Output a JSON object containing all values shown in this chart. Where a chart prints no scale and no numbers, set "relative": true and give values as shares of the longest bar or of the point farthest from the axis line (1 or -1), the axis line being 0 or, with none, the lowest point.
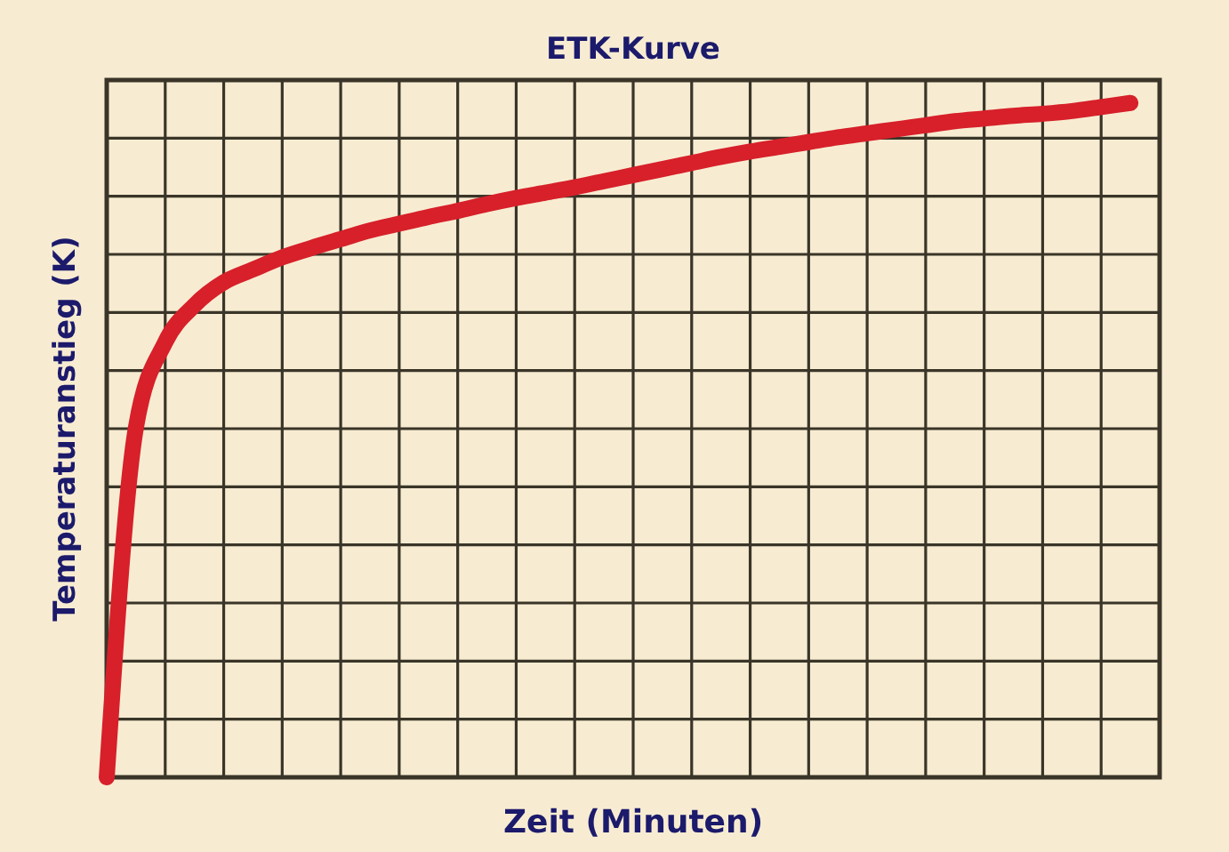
{
  "chart_data": {
    "type": "line",
    "title": "ETK-Kurve",
    "xlabel": "Zeit (Minuten)",
    "ylabel": "Temperaturanstieg (K)",
    "relative": true,
    "grid": true,
    "categories": [
      null,
      null,
      null,
      null,
      null,
      null,
      null,
      null,
      null,
      null,
      null,
      null,
      null,
      null,
      null,
      null,
      null,
      null,
      null,
      null,
      null,
      null,
      null,
      null,
      null,
      null,
      null,
      null,
      null,
      null,
      null,
      null,
      null,
      null,
      null,
      null,
      null
    ],
    "series": [
      {
        "color": "#d7202a",
        "values": [
          0,
          0.519,
          0.645,
          0.7,
          0.734,
          0.753,
          0.771,
          0.785,
          0.798,
          0.811,
          0.821,
          0.831,
          0.84,
          0.85,
          0.859,
          0.867,
          0.875,
          0.884,
          0.893,
          0.902,
          0.911,
          0.92,
          0.928,
          0.935,
          0.942,
          0.949,
          0.955,
          0.961,
          0.967,
          0.973,
          0.977,
          0.981,
          0.984,
          0.988,
          0.994,
          1,
          null
        ]
      }
    ],
    "line_style": "solid"
  }
}
